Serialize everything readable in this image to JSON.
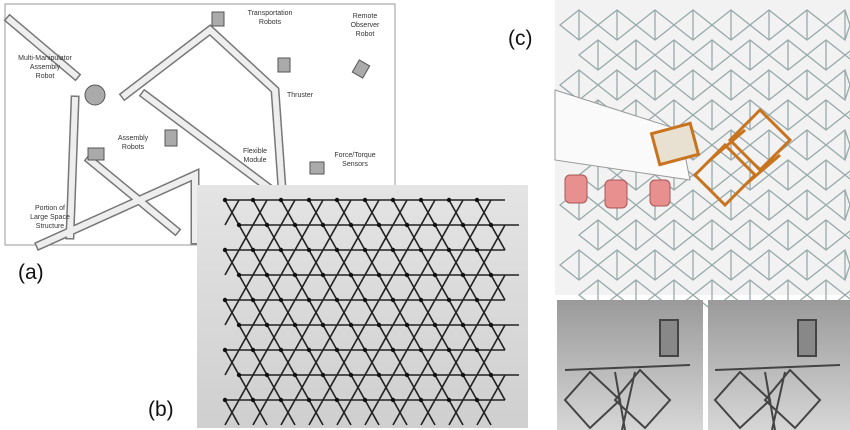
{
  "panels": {
    "a": {
      "label": "(a)",
      "annotations": [
        {
          "lines": [
            "Transportation",
            "Robots"
          ]
        },
        {
          "lines": [
            "Remote",
            "Observer",
            "Robot"
          ]
        },
        {
          "lines": [
            "Multi-Manipulator",
            "Assembly",
            "Robot"
          ]
        },
        {
          "lines": [
            "Thruster"
          ]
        },
        {
          "lines": [
            "Flexible",
            "Module"
          ]
        },
        {
          "lines": [
            "Assembly",
            "Robots"
          ]
        },
        {
          "lines": [
            "Force/Torque",
            "Sensors"
          ]
        },
        {
          "lines": [
            "Portion of",
            "Large Space",
            "Structure"
          ]
        }
      ]
    },
    "b": {
      "label": "(b)"
    },
    "c": {
      "label": "(c)"
    }
  }
}
